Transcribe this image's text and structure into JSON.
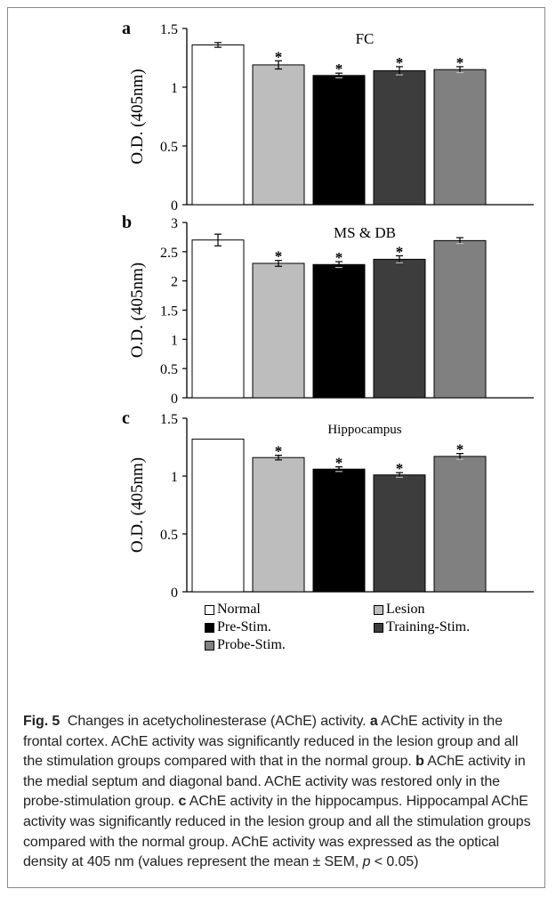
{
  "chart_data": [
    {
      "type": "bar",
      "panel_label": "a",
      "title": "FC",
      "ylabel": "O.D. (405nm)",
      "ylim": [
        0,
        1.5
      ],
      "yticks": [
        "0",
        "0.5",
        "1",
        "1.5"
      ],
      "categories": [
        "Normal",
        "Lesion",
        "Pre-Stim.",
        "Training-Stim.",
        "Probe-Stim."
      ],
      "values": [
        1.36,
        1.19,
        1.1,
        1.14,
        1.15
      ],
      "errors": [
        0.02,
        0.035,
        0.02,
        0.035,
        0.025
      ],
      "significant": [
        false,
        true,
        true,
        true,
        true
      ],
      "marker": "*"
    },
    {
      "type": "bar",
      "panel_label": "b",
      "title": "MS & DB",
      "ylabel": "O.D. (405nm)",
      "ylim": [
        0,
        3
      ],
      "yticks": [
        "0",
        "0.5",
        "1",
        "1.5",
        "2",
        "2.5",
        "3"
      ],
      "categories": [
        "Normal",
        "Lesion",
        "Pre-Stim.",
        "Training-Stim.",
        "Probe-Stim."
      ],
      "values": [
        2.7,
        2.3,
        2.28,
        2.37,
        2.69
      ],
      "errors": [
        0.1,
        0.05,
        0.05,
        0.06,
        0.05
      ],
      "significant": [
        false,
        true,
        true,
        true,
        false
      ],
      "marker": "*"
    },
    {
      "type": "bar",
      "panel_label": "c",
      "title": "Hippocampus",
      "ylabel": "O.D. (405nm)",
      "ylim": [
        0,
        1.5
      ],
      "yticks": [
        "0",
        "0.5",
        "1",
        "1.5"
      ],
      "categories": [
        "Normal",
        "Lesion",
        "Pre-Stim.",
        "Training-Stim.",
        "Probe-Stim."
      ],
      "values": [
        1.32,
        1.16,
        1.06,
        1.01,
        1.17
      ],
      "errors": [
        0.0,
        0.02,
        0.02,
        0.02,
        0.025
      ],
      "significant": [
        false,
        true,
        true,
        true,
        true
      ],
      "marker": "*"
    }
  ],
  "series_colors": [
    "#ffffff",
    "#bdbdbd",
    "#000000",
    "#3d3d3d",
    "#808080"
  ],
  "legend": {
    "items": [
      {
        "label": "Normal",
        "color": "#ffffff"
      },
      {
        "label": "Lesion",
        "color": "#bdbdbd"
      },
      {
        "label": "Pre-Stim.",
        "color": "#000000"
      },
      {
        "label": "Training-Stim.",
        "color": "#3d3d3d"
      },
      {
        "label": "Probe-Stim.",
        "color": "#808080"
      }
    ]
  },
  "caption": {
    "fig_label": "Fig. 5",
    "title": "Changes in acetycholinesterase (AChE) activity.",
    "a_label": "a",
    "a_text": "AChE activity in the frontal cortex. AChE activity was significantly reduced in the lesion group and all the stimulation groups compared with that in the normal group.",
    "b_label": "b",
    "b_text": "AChE activity in the medial septum and diagonal band. AChE activity was restored only in the probe-stimulation group.",
    "c_label": "c",
    "c_text": "AChE activity in the hippocampus. Hippocampal AChE activity was significantly reduced in the lesion group and all the stimulation groups compared with the normal group. AChE activity was expressed as the optical density at 405 nm (values represent the mean ± SEM,",
    "p_symbol": "p",
    "p_text": "< 0.05)"
  }
}
